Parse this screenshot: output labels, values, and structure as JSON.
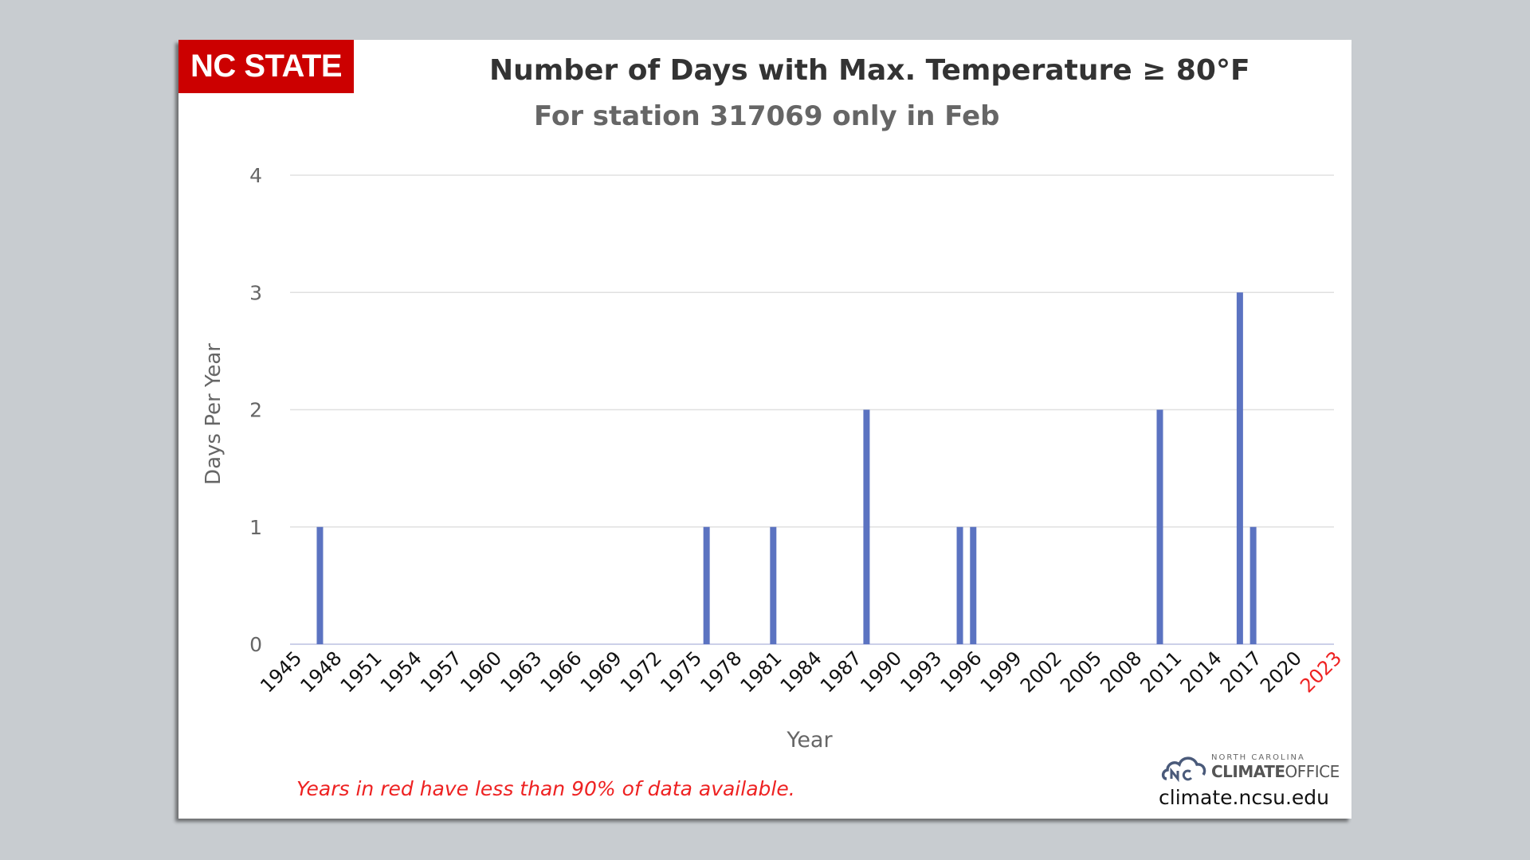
{
  "header": {
    "brand": "NC STATE",
    "brand_color": "#cc0000"
  },
  "footnote": "Years in red have less than 90% of data available.",
  "logo": {
    "line1": "NORTH CAROLINA",
    "line2_bold": "CLIMATE",
    "line2_rest": "OFFICE",
    "url": "climate.ncsu.edu",
    "icon": "cloud-nc-logo-icon"
  },
  "colors": {
    "bar": "#5b73c1",
    "grid": "#e0e0e0",
    "axis_text": "#666666",
    "tick_text": "#111111",
    "incomplete_year": "#ee2222"
  },
  "chart_data": {
    "type": "bar",
    "title": "Number of Days with Max. Temperature ≥ 80°F",
    "subtitle": "For station 317069 only in Feb",
    "xlabel": "Year",
    "ylabel": "Days Per Year",
    "ylim": [
      0,
      4
    ],
    "yticks": [
      0,
      1,
      2,
      3,
      4
    ],
    "xlim": [
      1945,
      2023
    ],
    "xticks": [
      1945,
      1948,
      1951,
      1954,
      1957,
      1960,
      1963,
      1966,
      1969,
      1972,
      1975,
      1978,
      1981,
      1984,
      1987,
      1990,
      1993,
      1996,
      1999,
      2002,
      2005,
      2008,
      2011,
      2014,
      2017,
      2020,
      2023
    ],
    "xticks_incomplete": [
      2023
    ],
    "grid": true,
    "legend": "none",
    "series": [
      {
        "points": [
          {
            "x": 1947,
            "y": 1
          },
          {
            "x": 1976,
            "y": 1
          },
          {
            "x": 1981,
            "y": 1
          },
          {
            "x": 1988,
            "y": 2
          },
          {
            "x": 1995,
            "y": 1
          },
          {
            "x": 1996,
            "y": 1
          },
          {
            "x": 2010,
            "y": 2
          },
          {
            "x": 2016,
            "y": 3
          },
          {
            "x": 2017,
            "y": 1
          }
        ]
      }
    ]
  }
}
